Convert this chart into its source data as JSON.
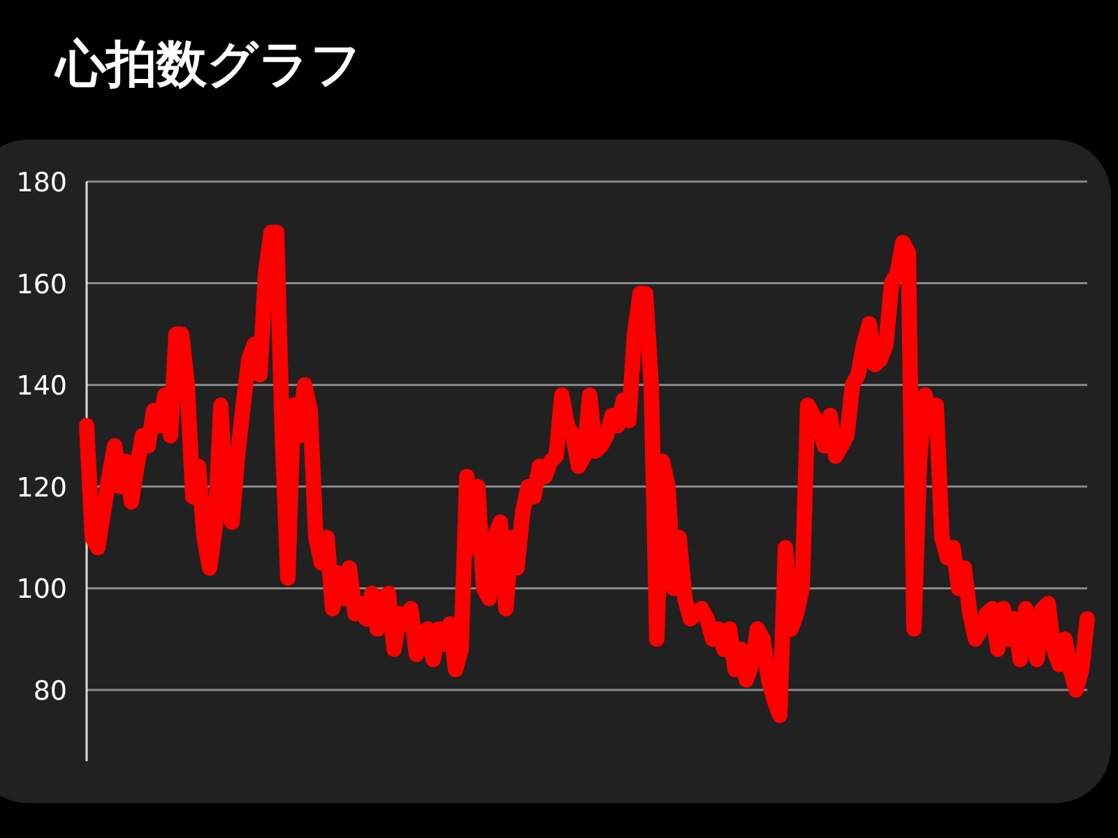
{
  "chart_data": {
    "type": "line",
    "title": "心拍数グラフ",
    "categories": [
      null,
      null,
      null,
      null,
      null,
      null,
      null,
      null,
      null,
      null,
      null,
      null,
      null,
      null,
      null,
      null,
      null,
      null,
      null,
      null,
      null,
      null,
      null,
      null,
      null,
      null,
      null,
      null,
      null,
      null,
      null,
      null,
      null,
      null,
      null,
      null,
      null,
      null,
      null,
      null,
      null,
      null,
      null,
      null,
      null,
      null,
      null,
      null,
      null,
      null,
      null,
      null,
      null,
      null,
      null,
      null,
      null,
      null,
      null,
      null,
      null,
      null,
      null,
      null,
      null,
      null,
      null,
      null,
      null,
      null,
      null,
      null,
      null,
      null,
      null,
      null,
      null,
      null,
      null,
      null,
      null,
      null,
      null,
      null,
      null,
      null,
      null,
      null,
      null,
      null,
      null,
      null,
      null,
      null,
      null,
      null,
      null,
      null,
      null,
      null,
      null,
      null,
      null,
      null,
      null,
      null,
      null,
      null,
      null,
      null,
      null,
      null,
      null,
      null,
      null,
      null,
      null,
      null,
      null,
      null,
      null,
      null,
      null,
      null,
      null,
      null,
      null,
      null,
      null,
      null,
      null,
      null,
      null,
      null,
      null,
      null,
      null,
      null,
      null,
      null,
      null,
      null,
      null,
      null,
      null,
      null,
      null,
      null,
      null,
      null,
      null,
      null,
      null,
      null,
      null,
      null,
      null,
      null,
      null,
      null,
      null,
      null,
      null,
      null,
      null,
      null,
      null,
      null,
      null,
      null,
      null,
      null,
      null,
      null,
      null,
      null,
      null,
      null,
      null,
      null
    ],
    "series": [
      {
        "color": "#ff0000",
        "values": [
          132,
          110,
          108,
          115,
          122,
          128,
          120,
          125,
          117,
          124,
          130,
          128,
          135,
          132,
          138,
          130,
          150,
          150,
          140,
          118,
          124,
          110,
          104,
          112,
          136,
          115,
          113,
          126,
          136,
          145,
          148,
          142,
          162,
          170,
          170,
          130,
          102,
          136,
          130,
          140,
          135,
          110,
          105,
          110,
          96,
          103,
          98,
          104,
          95,
          97,
          94,
          99,
          92,
          98,
          99,
          88,
          95,
          93,
          96,
          87,
          90,
          92,
          86,
          92,
          89,
          93,
          84,
          88,
          122,
          108,
          120,
          100,
          98,
          110,
          113,
          96,
          110,
          104,
          115,
          120,
          118,
          124,
          122,
          125,
          126,
          138,
          132,
          130,
          124,
          126,
          138,
          127,
          128,
          130,
          134,
          132,
          137,
          133,
          150,
          158,
          158,
          140,
          90,
          125,
          120,
          100,
          110,
          98,
          94,
          95,
          96,
          94,
          90,
          92,
          88,
          92,
          84,
          88,
          82,
          85,
          92,
          90,
          82,
          78,
          75,
          108,
          92,
          95,
          100,
          136,
          134,
          132,
          128,
          134,
          126,
          128,
          130,
          140,
          142,
          148,
          152,
          144,
          145,
          148,
          160,
          162,
          168,
          166,
          92,
          125,
          138,
          132,
          136,
          110,
          106,
          108,
          100,
          104,
          95,
          90,
          92,
          95,
          96,
          88,
          96,
          90,
          94,
          86,
          96,
          92,
          86,
          96,
          97,
          88,
          85,
          90,
          84,
          80,
          84,
          94
        ]
      }
    ],
    "ylim": [
      66,
      180
    ],
    "yticks": [
      80,
      100,
      120,
      140,
      160,
      180
    ],
    "grid": "y",
    "line_style": "solid"
  }
}
